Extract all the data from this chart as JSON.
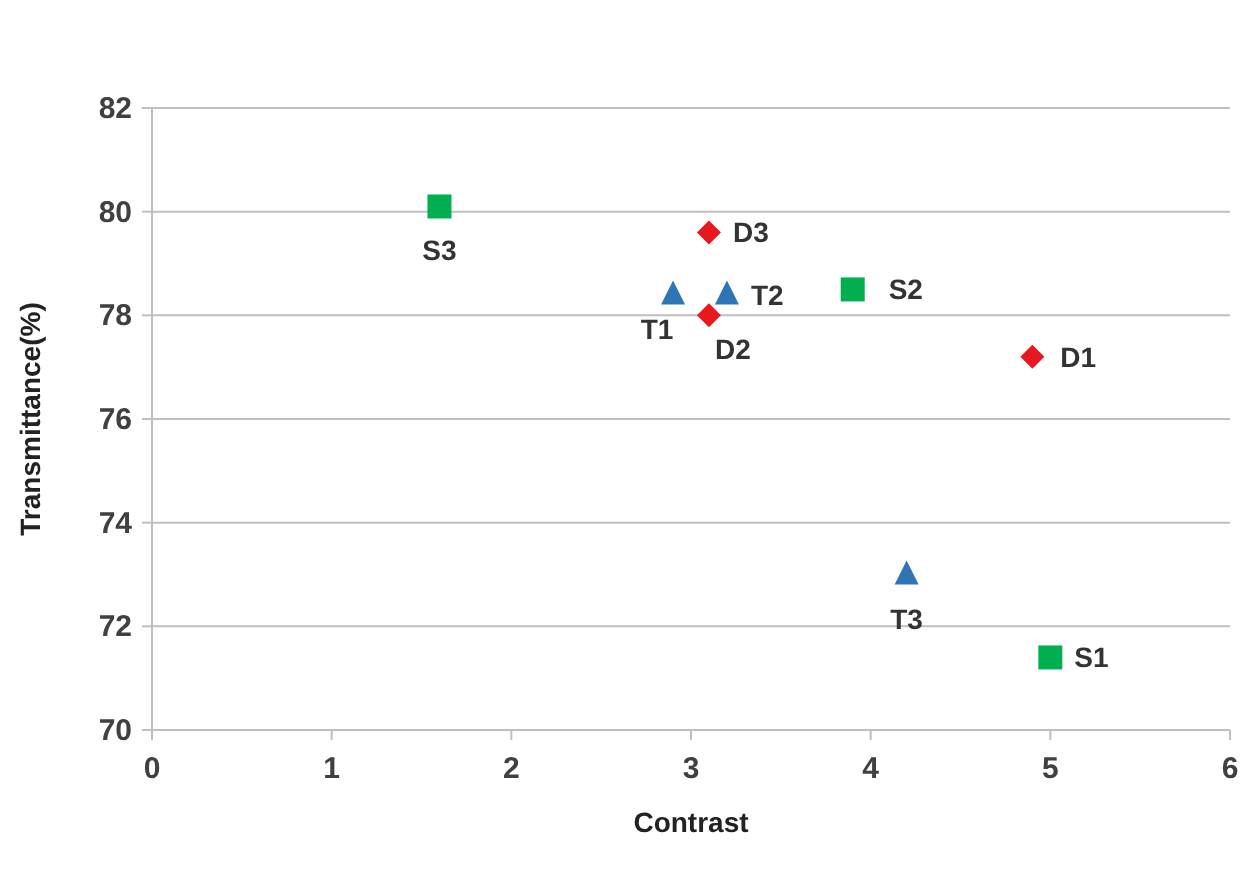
{
  "chart_data": {
    "type": "scatter",
    "xlabel": "Contrast",
    "ylabel": "Transmittance(%)",
    "xlim": [
      0,
      6
    ],
    "xticks": [
      0,
      1,
      2,
      3,
      4,
      5,
      6
    ],
    "ylim": [
      70,
      82
    ],
    "yticks": [
      70,
      72,
      74,
      76,
      78,
      80,
      82
    ],
    "grid": "y",
    "series": [
      {
        "color": "#e8191e",
        "marker": "diamond",
        "x": [
          4.9,
          3.1,
          3.1
        ],
        "values": [
          77.2,
          78.0,
          79.6
        ]
      },
      {
        "color": "#2e75b6",
        "marker": "triangle",
        "x": [
          2.9,
          3.2,
          4.2
        ],
        "values": [
          78.4,
          78.4,
          73.0
        ]
      },
      {
        "color": "#00b050",
        "marker": "square",
        "x": [
          5.0,
          3.9,
          1.6
        ],
        "values": [
          71.4,
          78.5,
          80.1
        ]
      }
    ],
    "annotations": [
      {
        "text": "D1",
        "x": 4.9,
        "y": 77.2
      },
      {
        "text": "D2",
        "x": 3.1,
        "y": 78.0
      },
      {
        "text": "D3",
        "x": 3.1,
        "y": 79.6
      },
      {
        "text": "T1",
        "x": 2.9,
        "y": 78.4
      },
      {
        "text": "T2",
        "x": 3.2,
        "y": 78.4
      },
      {
        "text": "T3",
        "x": 4.2,
        "y": 73.0
      },
      {
        "text": "S1",
        "x": 5.0,
        "y": 71.4
      },
      {
        "text": "S2",
        "x": 3.9,
        "y": 78.5
      },
      {
        "text": "S3",
        "x": 1.6,
        "y": 80.1
      }
    ]
  }
}
